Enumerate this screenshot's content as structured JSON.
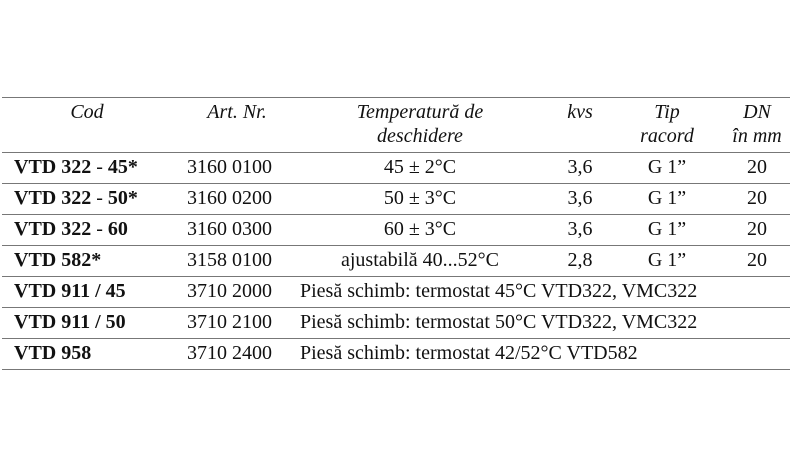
{
  "header": {
    "cod": "Cod",
    "art": "Art. Nr.",
    "temp_line1": "Temperatură  de",
    "temp_line2": "deschidere",
    "kvs": "kvs",
    "tip_line1": "Tip",
    "tip_line2": "racord",
    "dn_line1": "DN",
    "dn_line2": "în mm"
  },
  "rows": [
    {
      "cod_a": "VTD 322",
      "sep": " - ",
      "cod_b": "45*",
      "art": "3160 0100",
      "temp": "45 ± 2°C",
      "kvs": "3,6",
      "tip": "G 1”",
      "dn": "20"
    },
    {
      "cod_a": "VTD 322",
      "sep": " - ",
      "cod_b": "50*",
      "art": "3160 0200",
      "temp": "50 ± 3°C",
      "kvs": "3,6",
      "tip": "G 1”",
      "dn": "20"
    },
    {
      "cod_a": "VTD 322",
      "sep": " - ",
      "cod_b": "60",
      "art": "3160 0300",
      "temp": "60 ± 3°C",
      "kvs": "3,6",
      "tip": "G 1”",
      "dn": "20"
    },
    {
      "cod": "VTD 582*",
      "art": "3158 0100",
      "temp": "ajustabilă 40...52°C",
      "kvs": "2,8",
      "tip": "G 1”",
      "dn": "20"
    },
    {
      "cod": "VTD 911 / 45",
      "art": "3710 2000",
      "desc": "Piesă schimb: termostat 45°C  VTD322, VMC322"
    },
    {
      "cod": "VTD 911 / 50",
      "art": "3710 2100",
      "desc": "Piesă schimb: termostat 50°C  VTD322, VMC322"
    },
    {
      "cod": "VTD 958",
      "art": "3710 2400",
      "desc": "Piesă schimb: termostat 42/52°C VTD582"
    }
  ]
}
